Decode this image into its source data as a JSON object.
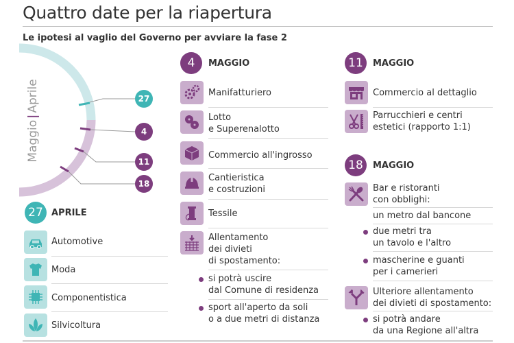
{
  "header": {
    "title": "Quattro date per la riapertura",
    "subtitle": "Le ipotesi al vaglio del Governo per avviare la fase 2"
  },
  "timeline": {
    "month_label_may": "Maggio",
    "month_label_april": "Aprile",
    "separator": "|",
    "markers": [
      "27",
      "4",
      "11",
      "18"
    ]
  },
  "aprile": {
    "day": "27",
    "month": "APRILE",
    "items": [
      {
        "icon": "car-icon",
        "label": "Automotive"
      },
      {
        "icon": "tshirt-icon",
        "label": "Moda"
      },
      {
        "icon": "chip-icon",
        "label": "Componentistica"
      },
      {
        "icon": "leaf-icon",
        "label": "Silvicoltura"
      }
    ]
  },
  "maggio4": {
    "day": "4",
    "month": "MAGGIO",
    "items": [
      {
        "icon": "gears-icon",
        "lines": [
          "Manifatturiero"
        ]
      },
      {
        "icon": "lottery-balls-icon",
        "lines": [
          "Lotto",
          "e Superenalotto"
        ]
      },
      {
        "icon": "crate-icon",
        "lines": [
          "Commercio all'ingrosso"
        ]
      },
      {
        "icon": "helmet-icon",
        "lines": [
          "Cantieristica",
          "e costruzioni"
        ]
      },
      {
        "icon": "thread-spool-icon",
        "lines": [
          "Tessile"
        ]
      },
      {
        "icon": "grid-arrow-icon",
        "lines": [
          "Allentamento",
          "dei divieti",
          "di spostamento:"
        ]
      }
    ],
    "bullets": [
      {
        "lines": [
          "si potrà uscire",
          "dal Comune di residenza"
        ]
      },
      {
        "lines": [
          "sport all'aperto da soli",
          "o a due metri di distanza"
        ]
      }
    ]
  },
  "maggio11": {
    "day": "11",
    "month": "MAGGIO",
    "items": [
      {
        "icon": "shop-icon",
        "lines": [
          "Commercio al dettaglio"
        ]
      },
      {
        "icon": "scissors-comb-icon",
        "lines": [
          "Parrucchieri e centri",
          "estetici (rapporto 1:1)"
        ]
      }
    ]
  },
  "maggio18": {
    "day": "18",
    "month": "MAGGIO",
    "items": [
      {
        "icon": "fork-knife-icon",
        "lines": [
          "Bar e ristoranti",
          "con obblighi:"
        ]
      }
    ],
    "restaurant_rules": [
      "un metro dal bancone"
    ],
    "restaurant_bullets": [
      {
        "lines": [
          "due metri tra",
          "un tavolo e l'altro"
        ]
      },
      {
        "lines": [
          "mascherine e guanti",
          "per i camerieri"
        ]
      }
    ],
    "travel": {
      "icon": "split-arrow-icon",
      "lines": [
        "Ulteriore allentamento",
        "dei divieti di spostamento:"
      ]
    },
    "travel_bullets": [
      {
        "lines": [
          "si potrà andare",
          "da una Regione all'altra"
        ]
      }
    ]
  },
  "colors": {
    "purple": "#7d3d7e",
    "teal": "#3fb5b5",
    "light_purple": "#c9adcc",
    "light_teal": "#b7e1e1"
  }
}
